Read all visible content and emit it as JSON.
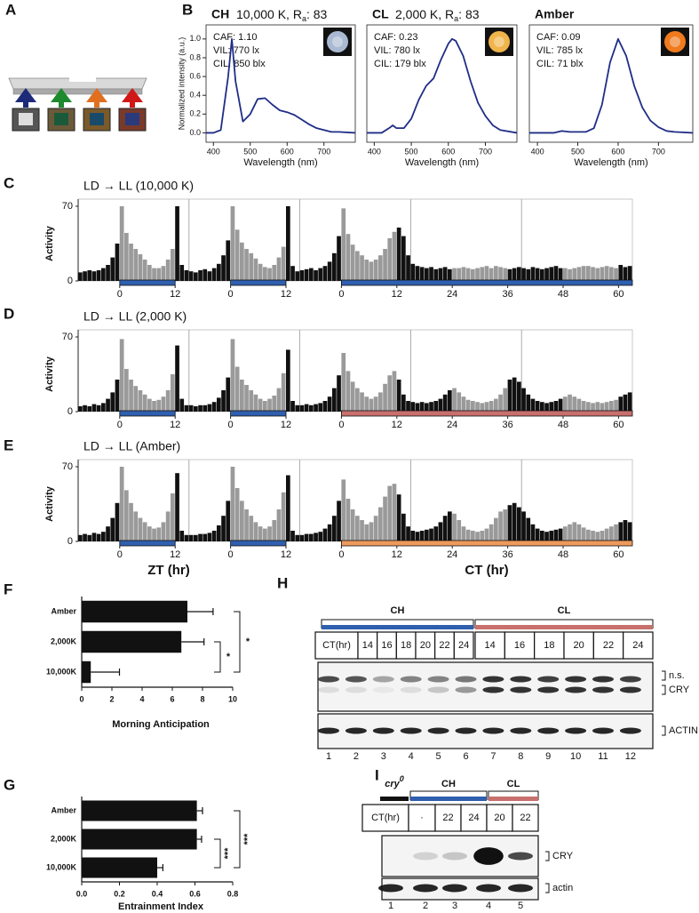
{
  "panels": [
    "A",
    "B",
    "C",
    "D",
    "E",
    "F",
    "G",
    "H",
    "I"
  ],
  "axis_labels": {
    "zt": "ZT (hr)",
    "ct": "CT (hr)"
  },
  "chart_data": [
    {
      "type": "line",
      "title": "CH",
      "subtitle": "10,000 K, R",
      "subtitle_sub": "a",
      "subtitle_end": ": 83",
      "annotations": [
        "CAF: 1.10",
        "VIL: 770 lx",
        "CIL: 850 blx"
      ],
      "swatch_color": "#a9b9d2",
      "ylabel": "Normalized intensity (a.u.)",
      "xlabel": "Wavelength (nm)",
      "color": "#1f2d86",
      "xlim": [
        380,
        785
      ],
      "ylim": [
        -0.1,
        1.15
      ],
      "xticks": [
        400,
        500,
        600,
        700
      ],
      "yticks": [
        {
          "value": 0,
          "label": "0.0"
        },
        0.2,
        0.4,
        0.6,
        0.8,
        {
          "value": 1,
          "label": "1.0"
        }
      ],
      "x": [
        380,
        400,
        420,
        440,
        450,
        460,
        480,
        500,
        520,
        540,
        560,
        580,
        600,
        620,
        640,
        660,
        680,
        700,
        720,
        740,
        785
      ],
      "values": [
        0,
        0,
        0.03,
        0.6,
        1.0,
        0.55,
        0.12,
        0.2,
        0.36,
        0.37,
        0.3,
        0.24,
        0.22,
        0.19,
        0.14,
        0.09,
        0.05,
        0.03,
        0.01,
        0.01,
        0
      ]
    },
    {
      "type": "line",
      "title": "CL",
      "subtitle": "2,000 K, R",
      "subtitle_sub": "a",
      "subtitle_end": ": 83",
      "annotations": [
        "CAF: 0.23",
        "VIL: 780 lx",
        "CIL: 179 blx"
      ],
      "swatch_color": "#f0b44a",
      "xlabel": "Wavelength (nm)",
      "color": "#1f2d86",
      "xlim": [
        380,
        785
      ],
      "ylim": [
        -0.1,
        1.15
      ],
      "xticks": [
        400,
        500,
        600,
        700
      ],
      "x": [
        380,
        420,
        440,
        450,
        460,
        480,
        500,
        520,
        540,
        560,
        580,
        600,
        610,
        620,
        640,
        660,
        680,
        700,
        720,
        740,
        785
      ],
      "values": [
        0,
        0,
        0.05,
        0.08,
        0.05,
        0.05,
        0.15,
        0.35,
        0.5,
        0.58,
        0.78,
        0.95,
        1.0,
        0.98,
        0.82,
        0.55,
        0.32,
        0.18,
        0.08,
        0.03,
        0
      ]
    },
    {
      "type": "line",
      "title": "Amber",
      "annotations": [
        "CAF: 0.09",
        "VIL: 785 lx",
        "CIL: 71 blx"
      ],
      "swatch_color": "#f07a1e",
      "xlabel": "Wavelength (nm)",
      "color": "#1f2d86",
      "xlim": [
        380,
        785
      ],
      "ylim": [
        -0.1,
        1.15
      ],
      "xticks": [
        400,
        500,
        600,
        700
      ],
      "x": [
        380,
        440,
        460,
        480,
        520,
        540,
        560,
        580,
        600,
        620,
        640,
        660,
        680,
        700,
        720,
        740,
        785
      ],
      "values": [
        0,
        0,
        0.02,
        0.01,
        0.01,
        0.05,
        0.3,
        0.75,
        1.0,
        0.82,
        0.5,
        0.27,
        0.13,
        0.06,
        0.02,
        0.01,
        0
      ]
    },
    {
      "type": "histogram",
      "title": "LD → LL (10,000 K)",
      "ylabel": "Activity",
      "xlim": [
        0,
        120
      ],
      "ylim": [
        0,
        70
      ],
      "yticks": [
        0,
        70
      ],
      "xticks": [
        {
          "value": 9,
          "label": "0"
        },
        {
          "value": 21,
          "label": "12"
        },
        {
          "value": 33,
          "label": "0"
        },
        {
          "value": 45,
          "label": "12"
        },
        {
          "value": 57,
          "label": "0"
        },
        {
          "value": 69,
          "label": "12"
        },
        {
          "value": 81,
          "label": "24"
        },
        {
          "value": 93,
          "label": "36"
        },
        {
          "value": 105,
          "label": "48"
        },
        {
          "value": 117,
          "label": "60"
        }
      ],
      "color": "#111111",
      "day_color": "#9a9a9a",
      "light_bars": [
        {
          "start": 9,
          "end": 21,
          "color": "#2f5fae"
        },
        {
          "start": 33,
          "end": 45,
          "color": "#2f5fae"
        },
        {
          "start": 57,
          "end": 120,
          "color": "#2f5fae"
        }
      ],
      "bins": [
        0,
        1,
        2,
        3,
        4,
        5,
        6,
        7,
        8,
        9,
        10,
        11,
        12,
        13,
        14,
        15,
        16,
        17,
        18,
        19,
        20,
        21,
        22,
        23,
        24,
        25,
        26,
        27,
        28,
        29,
        30,
        31,
        32,
        33,
        34,
        35,
        36,
        37,
        38,
        39,
        40,
        41,
        42,
        43,
        44,
        45,
        46,
        47,
        48,
        49,
        50,
        51,
        52,
        53,
        54,
        55,
        56,
        57,
        58,
        59,
        60,
        61,
        62,
        63,
        64,
        65,
        66,
        67,
        68,
        69,
        70,
        71,
        72,
        73,
        74,
        75,
        76,
        77,
        78,
        79,
        80,
        81,
        82,
        83,
        84,
        85,
        86,
        87,
        88,
        89,
        90,
        91,
        92,
        93,
        94,
        95,
        96,
        97,
        98,
        99,
        100,
        101,
        102,
        103,
        104,
        105,
        106,
        107,
        108,
        109,
        110,
        111,
        112,
        113,
        114,
        115,
        116,
        117,
        118,
        119,
        120
      ],
      "values": [
        8,
        9,
        10,
        9,
        10,
        12,
        15,
        22,
        35,
        70,
        45,
        35,
        30,
        25,
        20,
        15,
        12,
        12,
        14,
        20,
        30,
        70,
        15,
        10,
        9,
        8,
        10,
        11,
        9,
        12,
        16,
        24,
        38,
        70,
        48,
        36,
        30,
        26,
        21,
        16,
        13,
        12,
        15,
        22,
        32,
        70,
        14,
        9,
        10,
        11,
        12,
        10,
        12,
        14,
        18,
        26,
        42,
        68,
        44,
        34,
        28,
        24,
        20,
        18,
        20,
        24,
        30,
        40,
        46,
        50,
        42,
        24,
        16,
        14,
        13,
        12,
        13,
        11,
        12,
        13,
        11,
        12,
        12,
        13,
        12,
        11,
        12,
        13,
        14,
        12,
        14,
        13,
        12,
        11,
        12,
        13,
        12,
        11,
        13,
        12,
        11,
        12,
        13,
        14,
        12,
        12,
        11,
        12,
        13,
        14,
        14,
        13,
        12,
        13,
        14,
        13,
        12,
        15,
        13,
        14,
        13
      ]
    },
    {
      "type": "histogram",
      "title": "LD → LL (2,000 K)",
      "ylabel": "Activity",
      "xlim": [
        0,
        120
      ],
      "ylim": [
        0,
        70
      ],
      "yticks": [
        0,
        70
      ],
      "xticks": [
        {
          "value": 9,
          "label": "0"
        },
        {
          "value": 21,
          "label": "12"
        },
        {
          "value": 33,
          "label": "0"
        },
        {
          "value": 45,
          "label": "12"
        },
        {
          "value": 57,
          "label": "0"
        },
        {
          "value": 69,
          "label": "12"
        },
        {
          "value": 81,
          "label": "24"
        },
        {
          "value": 93,
          "label": "36"
        },
        {
          "value": 105,
          "label": "48"
        },
        {
          "value": 117,
          "label": "60"
        }
      ],
      "color": "#111111",
      "day_color": "#9a9a9a",
      "light_bars": [
        {
          "start": 9,
          "end": 21,
          "color": "#2f5fae"
        },
        {
          "start": 33,
          "end": 45,
          "color": "#2f5fae"
        },
        {
          "start": 57,
          "end": 120,
          "color": "#c7706e"
        }
      ],
      "bins": [
        0,
        1,
        2,
        3,
        4,
        5,
        6,
        7,
        8,
        9,
        10,
        11,
        12,
        13,
        14,
        15,
        16,
        17,
        18,
        19,
        20,
        21,
        22,
        23,
        24,
        25,
        26,
        27,
        28,
        29,
        30,
        31,
        32,
        33,
        34,
        35,
        36,
        37,
        38,
        39,
        40,
        41,
        42,
        43,
        44,
        45,
        46,
        47,
        48,
        49,
        50,
        51,
        52,
        53,
        54,
        55,
        56,
        57,
        58,
        59,
        60,
        61,
        62,
        63,
        64,
        65,
        66,
        67,
        68,
        69,
        70,
        71,
        72,
        73,
        74,
        75,
        76,
        77,
        78,
        79,
        80,
        81,
        82,
        83,
        84,
        85,
        86,
        87,
        88,
        89,
        90,
        91,
        92,
        93,
        94,
        95,
        96,
        97,
        98,
        99,
        100,
        101,
        102,
        103,
        104,
        105,
        106,
        107,
        108,
        109,
        110,
        111,
        112,
        113,
        114,
        115,
        116,
        117,
        118,
        119,
        120
      ],
      "values": [
        5,
        6,
        5,
        7,
        6,
        8,
        12,
        18,
        30,
        68,
        40,
        30,
        24,
        20,
        16,
        12,
        10,
        11,
        14,
        20,
        35,
        62,
        12,
        6,
        6,
        5,
        6,
        6,
        7,
        9,
        13,
        20,
        32,
        68,
        42,
        30,
        25,
        20,
        16,
        12,
        10,
        12,
        15,
        22,
        36,
        58,
        10,
        6,
        6,
        7,
        6,
        7,
        8,
        10,
        14,
        22,
        34,
        55,
        38,
        28,
        22,
        18,
        14,
        12,
        14,
        18,
        26,
        34,
        38,
        30,
        16,
        10,
        9,
        8,
        9,
        8,
        9,
        10,
        12,
        16,
        20,
        22,
        18,
        14,
        11,
        10,
        9,
        8,
        9,
        10,
        12,
        16,
        22,
        30,
        32,
        28,
        22,
        16,
        12,
        10,
        9,
        8,
        9,
        10,
        12,
        14,
        16,
        14,
        12,
        10,
        9,
        8,
        9,
        8,
        9,
        10,
        11,
        14,
        16,
        18,
        16
      ]
    },
    {
      "type": "histogram",
      "title": "LD → LL (Amber)",
      "ylabel": "Activity",
      "xlim": [
        0,
        120
      ],
      "ylim": [
        0,
        70
      ],
      "yticks": [
        0,
        70
      ],
      "xticks": [
        {
          "value": 9,
          "label": "0"
        },
        {
          "value": 21,
          "label": "12"
        },
        {
          "value": 33,
          "label": "0"
        },
        {
          "value": 45,
          "label": "12"
        },
        {
          "value": 57,
          "label": "0"
        },
        {
          "value": 69,
          "label": "12"
        },
        {
          "value": 81,
          "label": "24"
        },
        {
          "value": 93,
          "label": "36"
        },
        {
          "value": 105,
          "label": "48"
        },
        {
          "value": 117,
          "label": "60"
        }
      ],
      "color": "#111111",
      "day_color": "#9a9a9a",
      "light_bars": [
        {
          "start": 9,
          "end": 21,
          "color": "#2f5fae"
        },
        {
          "start": 33,
          "end": 45,
          "color": "#2f5fae"
        },
        {
          "start": 57,
          "end": 120,
          "color": "#ee9a5c"
        }
      ],
      "bins": [
        0,
        1,
        2,
        3,
        4,
        5,
        6,
        7,
        8,
        9,
        10,
        11,
        12,
        13,
        14,
        15,
        16,
        17,
        18,
        19,
        20,
        21,
        22,
        23,
        24,
        25,
        26,
        27,
        28,
        29,
        30,
        31,
        32,
        33,
        34,
        35,
        36,
        37,
        38,
        39,
        40,
        41,
        42,
        43,
        44,
        45,
        46,
        47,
        48,
        49,
        50,
        51,
        52,
        53,
        54,
        55,
        56,
        57,
        58,
        59,
        60,
        61,
        62,
        63,
        64,
        65,
        66,
        67,
        68,
        69,
        70,
        71,
        72,
        73,
        74,
        75,
        76,
        77,
        78,
        79,
        80,
        81,
        82,
        83,
        84,
        85,
        86,
        87,
        88,
        89,
        90,
        91,
        92,
        93,
        94,
        95,
        96,
        97,
        98,
        99,
        100,
        101,
        102,
        103,
        104,
        105,
        106,
        107,
        108,
        109,
        110,
        111,
        112,
        113,
        114,
        115,
        116,
        117,
        118,
        119,
        120
      ],
      "values": [
        6,
        7,
        6,
        8,
        7,
        9,
        14,
        22,
        36,
        70,
        48,
        36,
        28,
        22,
        18,
        14,
        12,
        13,
        18,
        28,
        45,
        64,
        10,
        6,
        6,
        6,
        7,
        7,
        8,
        10,
        15,
        24,
        38,
        70,
        50,
        38,
        30,
        24,
        18,
        14,
        12,
        14,
        20,
        30,
        46,
        62,
        10,
        6,
        6,
        7,
        7,
        8,
        9,
        12,
        16,
        24,
        38,
        58,
        40,
        30,
        24,
        20,
        16,
        18,
        24,
        32,
        42,
        52,
        54,
        44,
        26,
        14,
        10,
        9,
        10,
        11,
        12,
        14,
        18,
        24,
        28,
        26,
        20,
        14,
        11,
        10,
        9,
        10,
        12,
        16,
        22,
        28,
        30,
        34,
        36,
        32,
        28,
        22,
        16,
        12,
        10,
        9,
        10,
        11,
        12,
        14,
        16,
        18,
        16,
        13,
        11,
        10,
        9,
        10,
        12,
        14,
        16,
        18,
        20,
        18,
        16
      ]
    },
    {
      "type": "hbar",
      "categories": [
        "Amber",
        "2,000K",
        "10,000K"
      ],
      "values": [
        7.0,
        6.6,
        0.6
      ],
      "errors": [
        1.7,
        1.5,
        1.9
      ],
      "color": "#111111",
      "xlim": [
        0,
        10
      ],
      "xticks": [
        0,
        2,
        4,
        6,
        8,
        10
      ],
      "xlabel": "Morning Anticipation",
      "significance": [
        {
          "pair": [
            1,
            2
          ],
          "label": "*"
        },
        {
          "pair": [
            0,
            2
          ],
          "label": "*"
        }
      ]
    },
    {
      "type": "hbar",
      "categories": [
        "Amber",
        "2,000K",
        "10,000K"
      ],
      "values": [
        0.61,
        0.61,
        0.4
      ],
      "errors": [
        0.03,
        0.025,
        0.03
      ],
      "color": "#111111",
      "xlim": [
        0,
        0.8
      ],
      "xticks": [
        {
          "value": 0,
          "label": "0.0"
        },
        0.2,
        0.4,
        0.6,
        0.8
      ],
      "xlabel": "Entrainment Index",
      "rotate_labels": true,
      "significance": [
        {
          "pair": [
            1,
            2
          ],
          "label": "***"
        },
        {
          "pair": [
            0,
            2
          ],
          "label": "***"
        }
      ]
    }
  ],
  "blots": [
    {
      "row_label": "CT(hr)",
      "groups": [
        {
          "label": "CH",
          "color": "#2f5fae",
          "times": [
            "14",
            "16",
            "18",
            "20",
            "22",
            "24"
          ]
        },
        {
          "label": "CL",
          "color": "#c7706e",
          "times": [
            "14",
            "16",
            "18",
            "20",
            "22",
            "24"
          ]
        }
      ],
      "band_labels": [
        "n.s.",
        "CRY",
        "ACTIN"
      ],
      "lanes": [
        "1",
        "2",
        "3",
        "4",
        "5",
        "6",
        "7",
        "8",
        "9",
        "10",
        "11",
        "12"
      ]
    },
    {
      "row_label": "CT(hr)",
      "groups": [
        {
          "label": "cry",
          "sup": "0",
          "color": "#111111",
          "times": [
            "·"
          ]
        },
        {
          "label": "CH",
          "color": "#2f5fae",
          "times": [
            "22",
            "24"
          ]
        },
        {
          "label": "CL",
          "color": "#c7706e",
          "times": [
            "20",
            "22"
          ]
        }
      ],
      "band_labels": [
        "CRY",
        "actin"
      ],
      "lanes": [
        "1",
        "2",
        "3",
        "4",
        "5"
      ]
    }
  ]
}
